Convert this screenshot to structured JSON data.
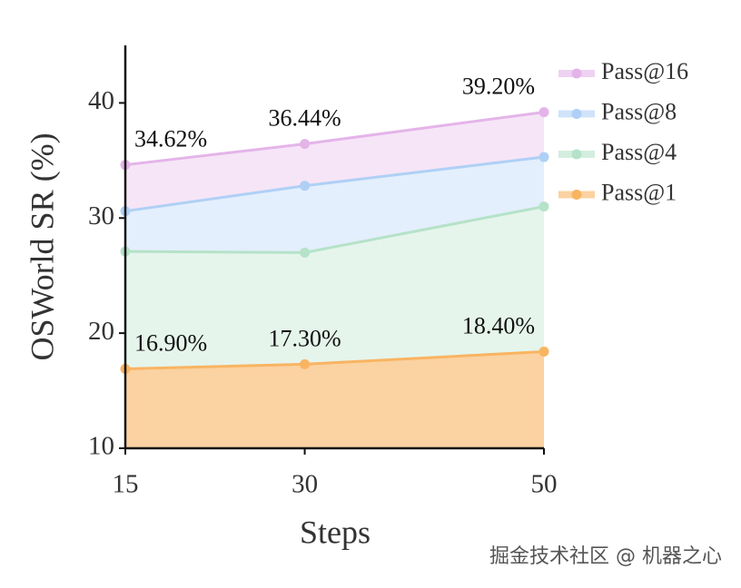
{
  "chart_data": {
    "type": "area",
    "x_label": "Steps",
    "y_label": "OSWorld SR (%)",
    "x": [
      15,
      30,
      50
    ],
    "xlim": [
      15,
      50
    ],
    "xticks": [
      15,
      30,
      50
    ],
    "ylim": [
      10,
      45
    ],
    "yticks": [
      10,
      20,
      30,
      40
    ],
    "legend": "upper right",
    "series": [
      {
        "name": "Pass@16",
        "color": "#e4b4e9",
        "values": [
          34.62,
          36.44,
          39.2
        ],
        "value_labels": [
          "34.62%",
          "36.44%",
          "39.20%"
        ]
      },
      {
        "name": "Pass@8",
        "color": "#afd0f5",
        "values": [
          30.6,
          32.8,
          35.3
        ]
      },
      {
        "name": "Pass@4",
        "color": "#b5e2c8",
        "values": [
          27.1,
          27.0,
          31.0
        ]
      },
      {
        "name": "Pass@1",
        "color": "#f9b462",
        "values": [
          16.9,
          17.3,
          18.4
        ],
        "value_labels": [
          "16.90%",
          "17.30%",
          "18.40%"
        ]
      }
    ],
    "watermark": "掘金技术社区 @ 机器之心"
  }
}
